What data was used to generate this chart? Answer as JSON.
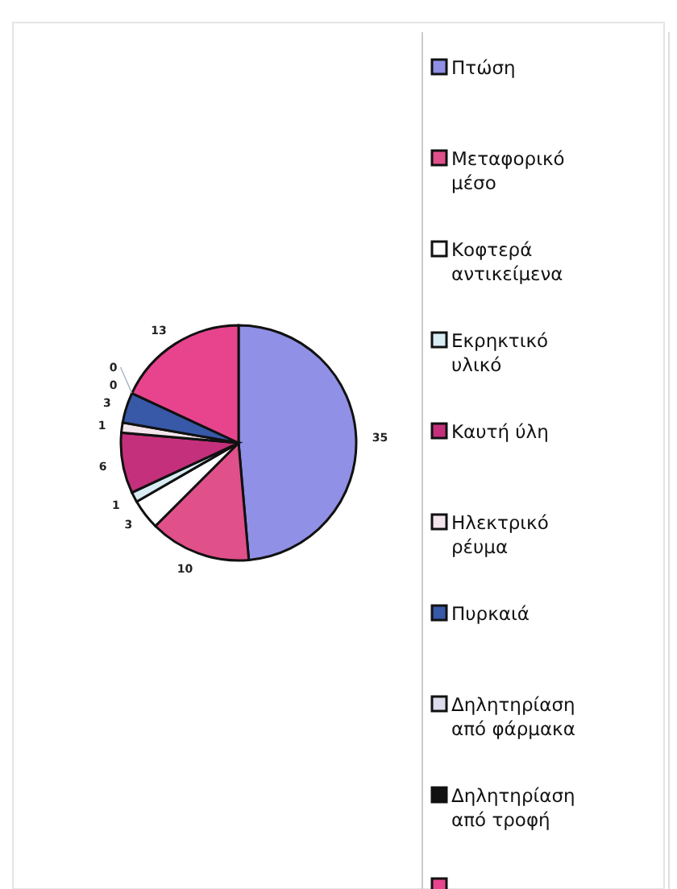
{
  "chart_data": {
    "type": "pie",
    "categories": [
      "Πτώση",
      "Μεταφορικό μέσο",
      "Κοφτερά αντικείμενα",
      "Εκρηκτικό υλικό",
      "Καυτή ύλη",
      "Ηλεκτρικό ρέυμα",
      "Πυρκαιά",
      "Δηλητηρίαση από φάρμακα",
      "Δηλητηρίαση από τροφή",
      null
    ],
    "values": [
      35,
      10,
      3,
      1,
      6,
      1,
      3,
      0,
      0,
      13
    ],
    "colors": [
      "#9090e6",
      "#e0508a",
      "#ffffff",
      "#d8ecf4",
      "#c4307c",
      "#f4e4ec",
      "#3858a8",
      "#dcdcec",
      "#111111",
      "#e8448e"
    ],
    "value_labels": [
      "35",
      "10",
      "3",
      "1",
      "6",
      "1",
      "3",
      "0",
      "0",
      "13"
    ],
    "legend": "right"
  }
}
